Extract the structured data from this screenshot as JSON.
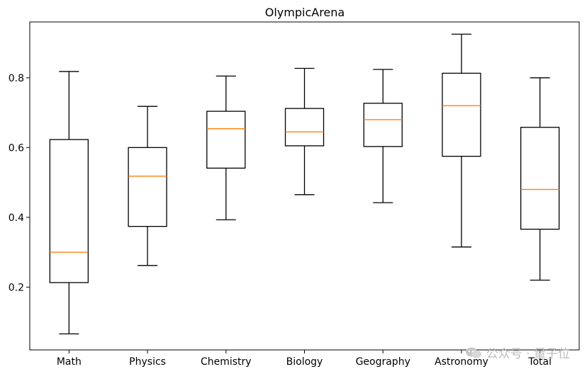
{
  "chart_data": {
    "type": "boxplot",
    "title": "OlympicArena",
    "xlabel": "",
    "ylabel": "",
    "ylim": [
      0.02,
      0.96
    ],
    "yticks": [
      "0.2",
      "0.4",
      "0.6",
      "0.8"
    ],
    "categories": [
      "Math",
      "Physics",
      "Chemistry",
      "Biology",
      "Geography",
      "Astronomy",
      "Total"
    ],
    "boxes": [
      {
        "name": "Math",
        "whisker_low": 0.066,
        "q1": 0.213,
        "median": 0.3,
        "q3": 0.623,
        "whisker_high": 0.818
      },
      {
        "name": "Physics",
        "whisker_low": 0.262,
        "q1": 0.374,
        "median": 0.518,
        "q3": 0.6,
        "whisker_high": 0.718
      },
      {
        "name": "Chemistry",
        "whisker_low": 0.393,
        "q1": 0.541,
        "median": 0.654,
        "q3": 0.704,
        "whisker_high": 0.805
      },
      {
        "name": "Biology",
        "whisker_low": 0.465,
        "q1": 0.605,
        "median": 0.645,
        "q3": 0.712,
        "whisker_high": 0.827
      },
      {
        "name": "Geography",
        "whisker_low": 0.442,
        "q1": 0.603,
        "median": 0.68,
        "q3": 0.727,
        "whisker_high": 0.824
      },
      {
        "name": "Astronomy",
        "whisker_low": 0.315,
        "q1": 0.575,
        "median": 0.72,
        "q3": 0.813,
        "whisker_high": 0.925
      },
      {
        "name": "Total",
        "whisker_low": 0.22,
        "q1": 0.366,
        "median": 0.48,
        "q3": 0.658,
        "whisker_high": 0.8
      }
    ],
    "colors": {
      "box": "#000000",
      "median": "#ff7f0e"
    },
    "grid": false
  },
  "watermark": {
    "text": "公众号 · 量子位",
    "icon": "wechat-icon"
  }
}
